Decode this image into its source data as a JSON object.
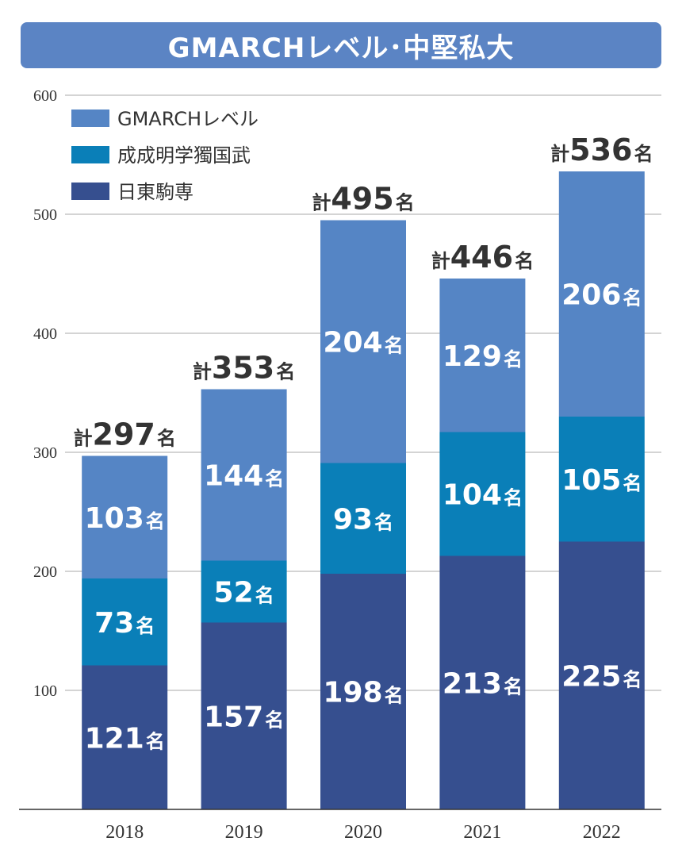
{
  "chart_data": {
    "type": "bar",
    "stacked": true,
    "title": "GMARCHレベル･中堅私大",
    "categories": [
      "2018",
      "2019",
      "2020",
      "2021",
      "2022"
    ],
    "series": [
      {
        "name": "日東駒専",
        "values": [
          121,
          157,
          198,
          213,
          225
        ],
        "color": "#364f8f"
      },
      {
        "name": "成成明学獨国武",
        "values": [
          73,
          52,
          93,
          104,
          105
        ],
        "color": "#0a7fb8"
      },
      {
        "name": "GMARCHレベル",
        "values": [
          103,
          144,
          204,
          129,
          206
        ],
        "color": "#5585c5"
      }
    ],
    "totals": [
      297,
      353,
      495,
      446,
      536
    ],
    "total_prefix": "計",
    "unit": "名",
    "ylim": [
      0,
      600
    ],
    "yticks": [
      "100",
      "200",
      "300",
      "400",
      "500",
      "600"
    ],
    "grid": true,
    "legend_position": "top-left",
    "legend_order": [
      "GMARCHレベル",
      "成成明学獨国武",
      "日東駒専"
    ],
    "xlabel": "",
    "ylabel": ""
  }
}
